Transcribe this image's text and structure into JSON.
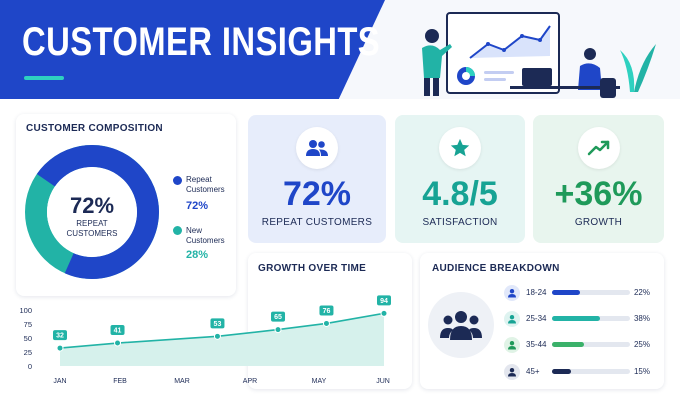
{
  "header": {
    "title": "CUSTOMER INSIGHTS"
  },
  "composition": {
    "title": "CUSTOMER COMPOSITION",
    "center_value": "72%",
    "center_label_1": "REPEAT",
    "center_label_2": "CUSTOMERS",
    "legend": [
      {
        "label_1": "Repeat",
        "label_2": "Customers",
        "value": "72%",
        "color": "#1f46c8",
        "fraction": 0.72
      },
      {
        "label_1": "New",
        "label_2": "Customers",
        "value": "28%",
        "color": "#22b3a6",
        "fraction": 0.28
      }
    ]
  },
  "kpis": [
    {
      "value": "72%",
      "label": "REPEAT CUSTOMERS",
      "icon": "users-icon",
      "color": "#1f46c8",
      "bg": "#e7edfb"
    },
    {
      "value": "4.8/5",
      "label": "SATISFACTION",
      "icon": "star-icon",
      "color": "#17a394",
      "bg": "#e6f5f3"
    },
    {
      "value": "+36%",
      "label": "GROWTH",
      "icon": "trend-up-icon",
      "color": "#1f9a5a",
      "bg": "#e8f5ee"
    }
  ],
  "growth": {
    "title": "GROWTH OVER TIME",
    "chart_data": {
      "type": "area",
      "categories": [
        "JAN",
        "FEB",
        "MAR",
        "APR",
        "MAY",
        "JUN"
      ],
      "x_positions": [
        "JAN",
        "FEB",
        "MAR",
        "APR",
        "MAY",
        "JUN"
      ],
      "points": [
        {
          "label": "32",
          "value": 32,
          "x_pos": 0
        },
        {
          "label": "41",
          "value": 41,
          "x_pos": 0.95
        },
        {
          "label": "53",
          "value": 53,
          "x_pos": 2.6
        },
        {
          "label": "65",
          "value": 65,
          "x_pos": 3.6
        },
        {
          "label": "76",
          "value": 76,
          "x_pos": 4.4
        },
        {
          "label": "94",
          "value": 94,
          "x_pos": 5.35
        }
      ],
      "yticks": [
        "100",
        "75",
        "50",
        "25",
        "0"
      ],
      "ylim": [
        0,
        100
      ],
      "color": "#22b3a6"
    }
  },
  "audience": {
    "title": "AUDIENCE BREAKDOWN",
    "rows": [
      {
        "label": "18-24",
        "pct": "22%",
        "fraction": 0.22,
        "color": "#1f46c8",
        "icon_bg": "#e1e8fa"
      },
      {
        "label": "25-34",
        "pct": "38%",
        "fraction": 0.38,
        "color": "#22b3a6",
        "icon_bg": "#def3f0"
      },
      {
        "label": "35-44",
        "pct": "25%",
        "fraction": 0.25,
        "color": "#3bb16a",
        "icon_bg": "#e0f3e6"
      },
      {
        "label": "45+",
        "pct": "15%",
        "fraction": 0.15,
        "color": "#1c2a55",
        "icon_bg": "#e3e6ee"
      }
    ]
  }
}
